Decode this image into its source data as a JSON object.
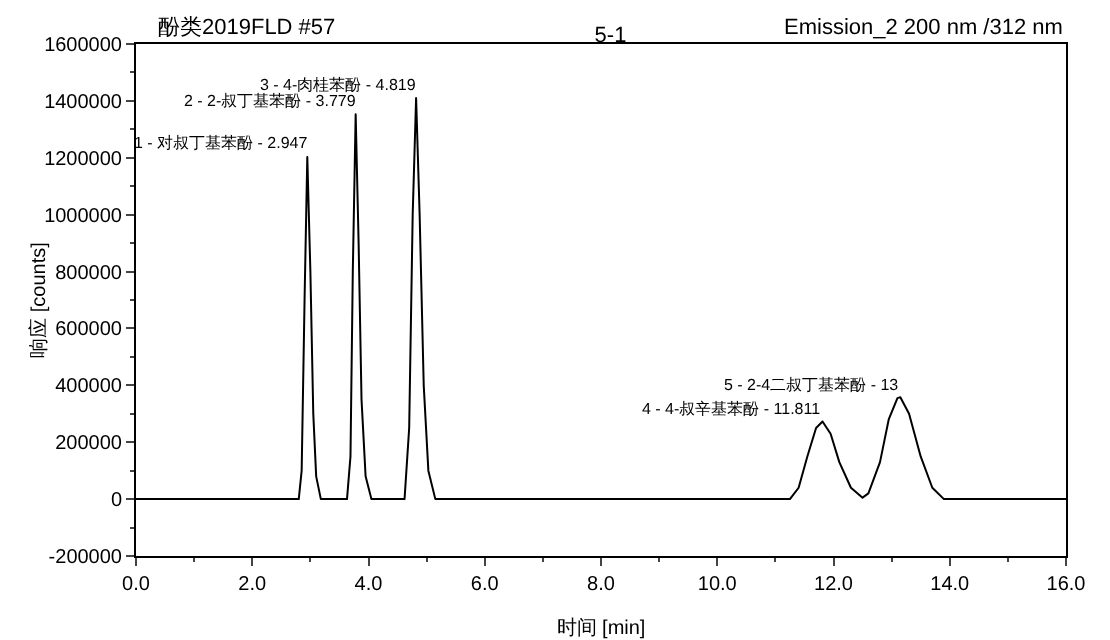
{
  "chart_data": {
    "type": "line",
    "title": "5-1",
    "xlabel": "时间 [min]",
    "ylabel": "响应 [counts]",
    "annotations": [
      "酚类2019FLD #57",
      "Emission_2 200 nm /312 nm",
      {
        "text": "1 - 对叔丁基苯酚 - 2.947",
        "x": 2.947,
        "y": 1203000
      },
      {
        "text": "2 - 2-叔丁基苯酚 - 3.779",
        "x": 3.779,
        "y": 1353000
      },
      {
        "text": "3 - 4-肉桂苯酚 - 4.819",
        "x": 4.819,
        "y": 1410000
      },
      {
        "text": "4 - 4-叔辛基苯酚 - 11.811",
        "x": 11.811,
        "y": 273000
      },
      {
        "text": "5 - 2-4二叔丁基苯酚 - 13",
        "x": 13.15,
        "y": 358000
      }
    ],
    "series": [
      {
        "color": "#000000",
        "x": [
          0,
          1,
          2,
          2.8,
          2.85,
          2.9,
          2.947,
          3.0,
          3.05,
          3.1,
          3.18,
          3.4,
          3.63,
          3.69,
          3.73,
          3.779,
          3.83,
          3.88,
          3.95,
          4.05,
          4.3,
          4.62,
          4.7,
          4.76,
          4.819,
          4.88,
          4.95,
          5.03,
          5.15,
          6,
          8,
          10,
          11.25,
          11.4,
          11.55,
          11.7,
          11.811,
          11.95,
          12.1,
          12.3,
          12.5,
          12.6,
          12.8,
          12.95,
          13.1,
          13.15,
          13.3,
          13.5,
          13.7,
          13.9,
          15,
          16
        ],
        "values": [
          0,
          0,
          0,
          0,
          100000,
          700000,
          1203000,
          800000,
          300000,
          80000,
          0,
          0,
          0,
          150000,
          800000,
          1353000,
          900000,
          350000,
          80000,
          0,
          0,
          0,
          250000,
          1000000,
          1410000,
          1000000,
          400000,
          100000,
          0,
          0,
          0,
          0,
          0,
          40000,
          150000,
          250000,
          273000,
          230000,
          130000,
          40000,
          5000,
          20000,
          130000,
          280000,
          355000,
          358000,
          300000,
          150000,
          40000,
          0,
          0,
          0
        ]
      }
    ],
    "xlim": [
      0,
      16
    ],
    "xticks": [
      {
        "value": 0,
        "label": "0.0"
      },
      {
        "value": 2,
        "label": "2.0"
      },
      {
        "value": 4,
        "label": "4.0"
      },
      {
        "value": 6,
        "label": "6.0"
      },
      {
        "value": 8,
        "label": "8.0"
      },
      {
        "value": 10,
        "label": "10.0"
      },
      {
        "value": 12,
        "label": "12.0"
      },
      {
        "value": 14,
        "label": "14.0"
      },
      {
        "value": 16,
        "label": "16.0"
      }
    ],
    "ylim": [
      -200000,
      1600000
    ],
    "yticks": [
      -200000,
      0,
      200000,
      400000,
      600000,
      800000,
      1000000,
      1200000,
      1400000,
      1600000
    ],
    "grid": false,
    "marker": "none",
    "line_style": "solid"
  }
}
